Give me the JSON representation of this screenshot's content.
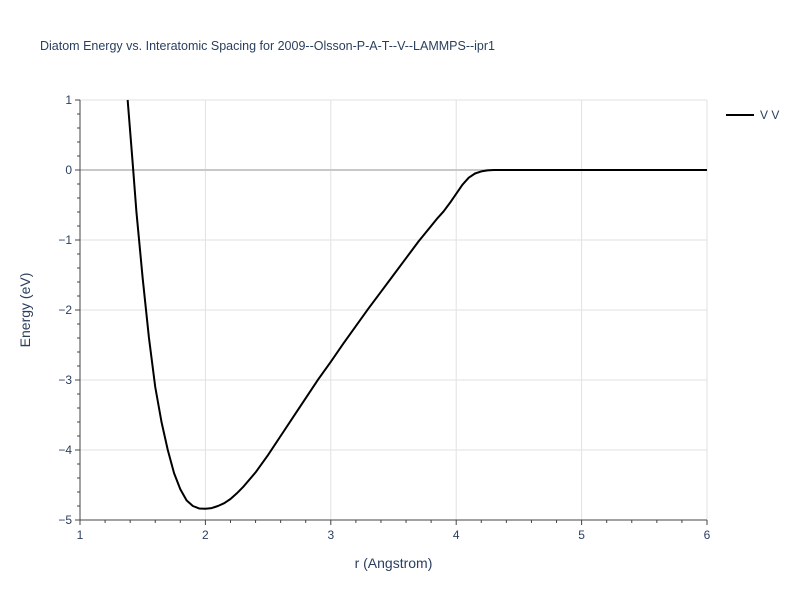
{
  "chart_data": {
    "type": "line",
    "title": "Diatom Energy vs. Interatomic Spacing for 2009--Olsson-P-A-T--V--LAMMPS--ipr1",
    "xlabel": "r (Angstrom)",
    "ylabel": "Energy (eV)",
    "xlim": [
      1,
      6
    ],
    "ylim": [
      -5,
      1
    ],
    "xticks": [
      1,
      2,
      3,
      4,
      5,
      6
    ],
    "yticks": [
      -5,
      -4,
      -3,
      -2,
      -1,
      0,
      1
    ],
    "grid": true,
    "legend_position": "top-right",
    "series": [
      {
        "name": "V V",
        "color": "#000000",
        "x": [
          1.38,
          1.4,
          1.42,
          1.45,
          1.5,
          1.55,
          1.6,
          1.65,
          1.7,
          1.75,
          1.8,
          1.85,
          1.9,
          1.95,
          2.0,
          2.05,
          2.1,
          2.15,
          2.2,
          2.25,
          2.3,
          2.4,
          2.5,
          2.6,
          2.7,
          2.8,
          2.9,
          3.0,
          3.1,
          3.2,
          3.3,
          3.4,
          3.5,
          3.6,
          3.7,
          3.8,
          3.85,
          3.9,
          3.95,
          4.0,
          4.05,
          4.1,
          4.15,
          4.2,
          4.25,
          4.3,
          4.4,
          4.5,
          5.0,
          5.5,
          6.0
        ],
        "y": [
          1.0,
          0.55,
          0.1,
          -0.6,
          -1.55,
          -2.4,
          -3.1,
          -3.6,
          -4.0,
          -4.33,
          -4.56,
          -4.72,
          -4.8,
          -4.835,
          -4.84,
          -4.83,
          -4.8,
          -4.76,
          -4.7,
          -4.62,
          -4.53,
          -4.32,
          -4.07,
          -3.8,
          -3.53,
          -3.26,
          -2.99,
          -2.74,
          -2.48,
          -2.23,
          -1.98,
          -1.74,
          -1.5,
          -1.26,
          -1.02,
          -0.8,
          -0.69,
          -0.59,
          -0.47,
          -0.34,
          -0.21,
          -0.11,
          -0.05,
          -0.02,
          -0.005,
          0.0,
          0.0,
          0.0,
          0.0,
          0.0,
          0.0
        ]
      }
    ]
  }
}
